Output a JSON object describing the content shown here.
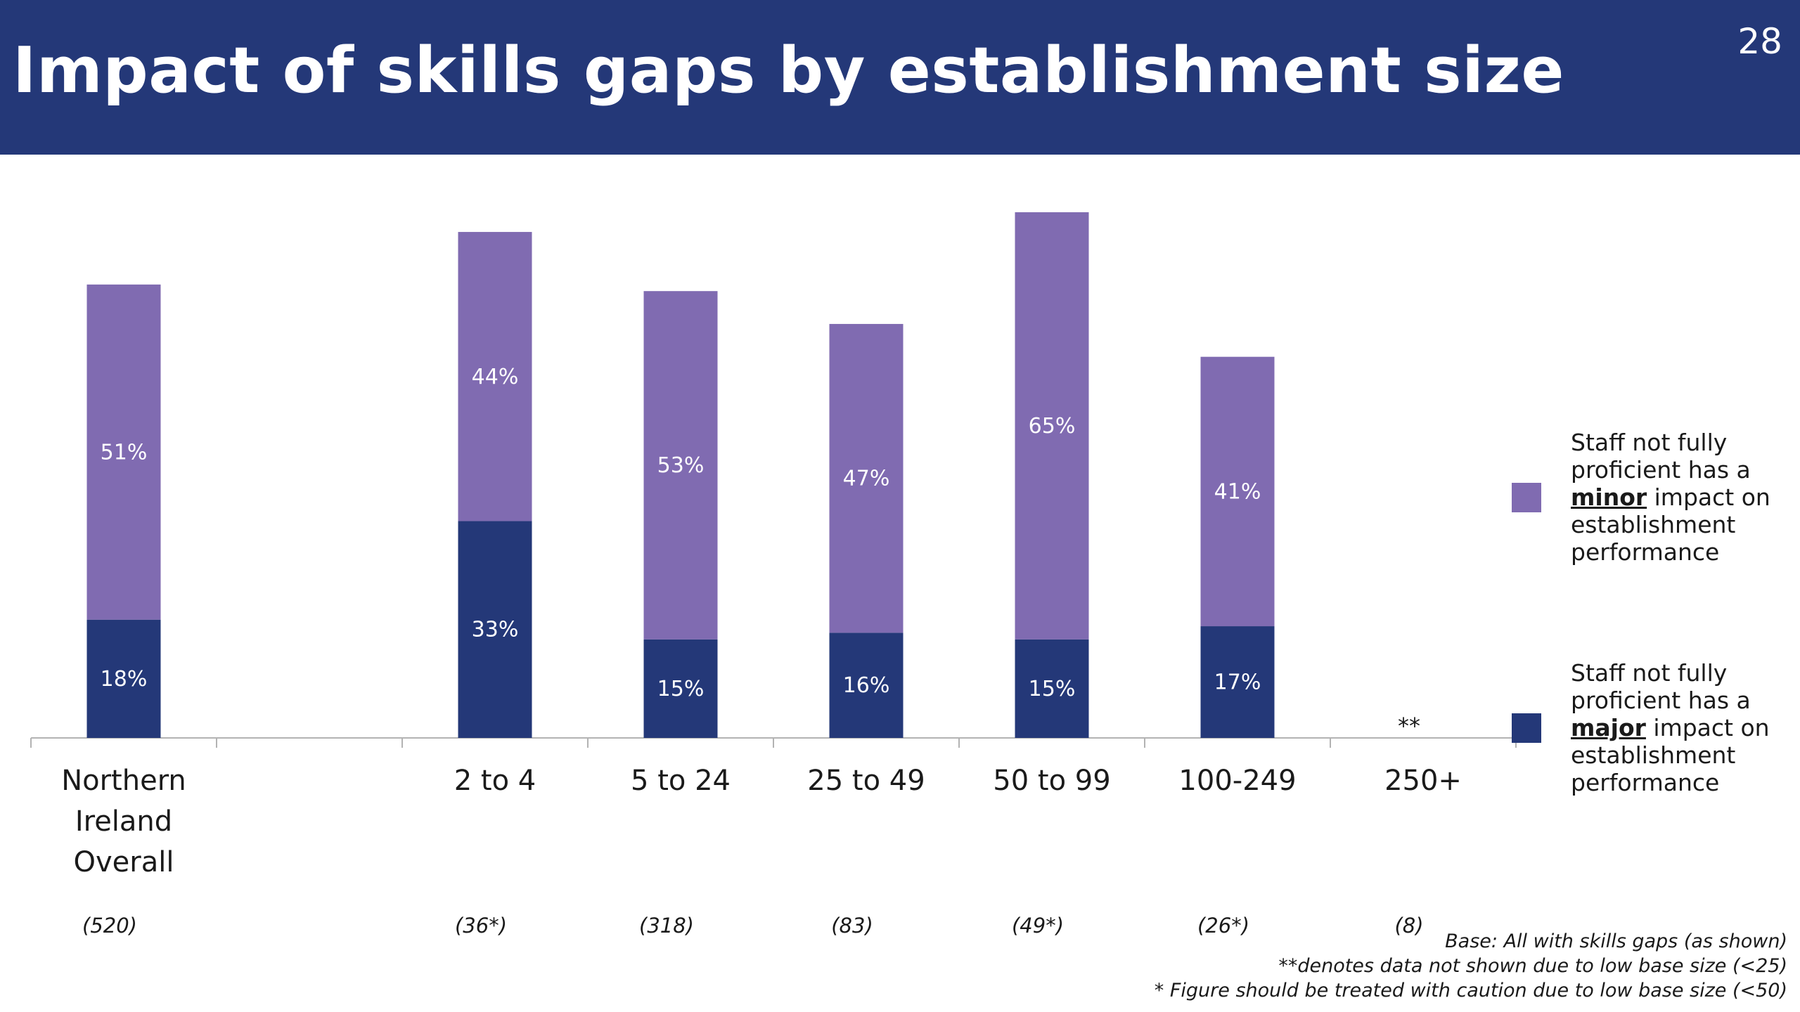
{
  "header": {
    "title": "Impact of skills gaps by establishment size",
    "page_number": "28"
  },
  "colors": {
    "header_bg": "#243878",
    "major": "#243878",
    "minor": "#806bb1"
  },
  "legend": {
    "minor": {
      "pre": "Staff not fully proficient has a",
      "emph": "minor",
      "post": "impact on establishment performance"
    },
    "major": {
      "pre": "Staff not fully proficient has a",
      "emph": "major",
      "post": "impact on establishment performance"
    }
  },
  "notes": {
    "base": "Base: All with skills gaps (as shown)",
    "low_base_hidden": "**denotes data not shown due to low base size (<25)",
    "caution": "* Figure should be treated with caution due to low base size (<50)"
  },
  "chart_data": {
    "type": "bar",
    "stacked": true,
    "categories": [
      "Northern Ireland Overall",
      "",
      "2 to 4",
      "5 to 24",
      "25 to 49",
      "50 to 99",
      "100-249",
      "250+"
    ],
    "category_lines": [
      [
        "Northern",
        "Ireland",
        "Overall"
      ],
      [],
      [
        "2 to 4"
      ],
      [
        "5 to 24"
      ],
      [
        "25 to 49"
      ],
      [
        "50 to 99"
      ],
      [
        "100-249"
      ],
      [
        "250+"
      ]
    ],
    "bases": [
      "(520)",
      "",
      "(36*)",
      "(318)",
      "(83)",
      "(49*)",
      "(26*)",
      "(8)"
    ],
    "series": [
      {
        "name": "Staff not fully proficient has a major impact on establishment performance",
        "values": [
          18,
          null,
          33,
          15,
          16,
          15,
          17,
          null
        ]
      },
      {
        "name": "Staff not fully proficient has a minor impact on establishment performance",
        "values": [
          51,
          null,
          44,
          53,
          47,
          65,
          41,
          null
        ]
      }
    ],
    "data_labels": [
      [
        "18%",
        "",
        "33%",
        "15%",
        "16%",
        "15%",
        "17%",
        ""
      ],
      [
        "51%",
        "",
        "44%",
        "53%",
        "47%",
        "65%",
        "41%",
        ""
      ]
    ],
    "suppressed_marker": "**",
    "suppressed_index": 7,
    "ylim": [
      0,
      100
    ],
    "grid": false,
    "legend_position": "right"
  }
}
